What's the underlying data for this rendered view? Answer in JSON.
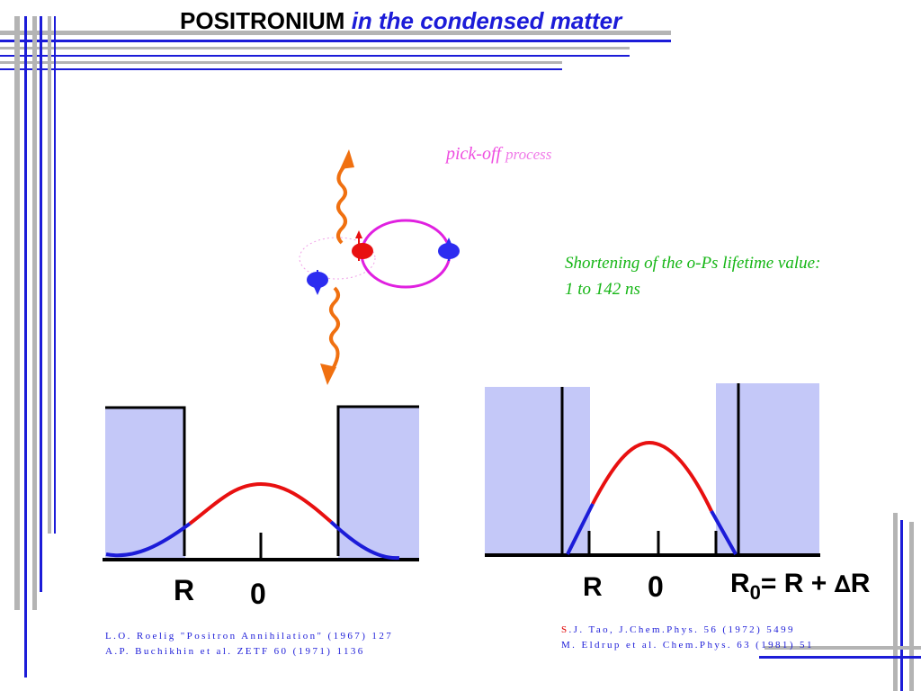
{
  "title": {
    "main": "POSITRONIUM",
    "em": "in the condensed",
    "end": "matter"
  },
  "process": {
    "word1": "pick-off",
    "word2": "process"
  },
  "lifetime": {
    "line1": "Shortening of the o-Ps lifetime value:",
    "line2": "1 to 142 ns"
  },
  "left_plot": {
    "r_label": "R",
    "zero_label": "0"
  },
  "right_plot": {
    "r_label": "R",
    "zero_label": "0",
    "formula": {
      "r0": "R",
      "sub": "0",
      "rest": "= R + ",
      "delta": "∆",
      "r_end": "R"
    }
  },
  "refs_left": [
    "L.O. Roelig \"Positron Annihilation\" (1967) 127",
    "A.P. Buchikhin et al. ZETF 60 (1971) 1136"
  ],
  "refs_right": {
    "first_letter": "S",
    "line1": ".J. Tao, J.Chem.Phys. 56 (1972) 5499",
    "line2": "M. Eldrup et al. Chem.Phys. 63 (1981) 51"
  },
  "colors": {
    "accent_blue": "#1c1cd8",
    "rule_gray": "#b4b4b4",
    "well_fill": "#c4c8f8",
    "wave_red": "#e81010",
    "photon_orange": "#f07010",
    "orbit_magenta": "#e020e0",
    "note_green": "#16b616"
  }
}
